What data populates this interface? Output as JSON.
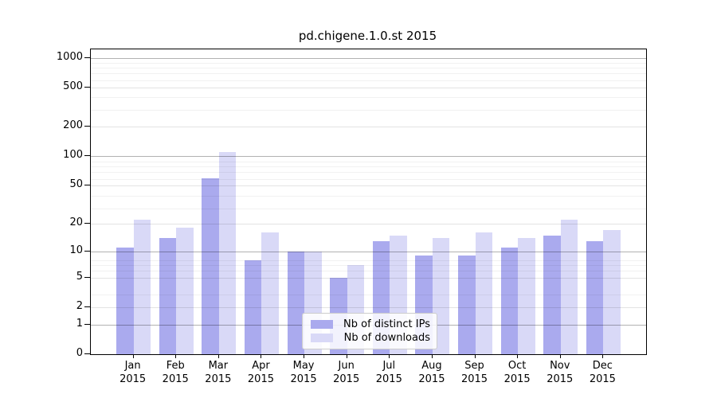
{
  "title": "pd.chigene.1.0.st 2015",
  "legend": {
    "items": [
      {
        "label": "Nb of distinct IPs",
        "color": "#aaaaee"
      },
      {
        "label": "Nb of downloads",
        "color": "#d9d9f7"
      }
    ]
  },
  "chart_data": {
    "type": "bar",
    "title": "pd.chigene.1.0.st 2015",
    "categories": [
      "Jan 2015",
      "Feb 2015",
      "Mar 2015",
      "Apr 2015",
      "May 2015",
      "Jun 2015",
      "Jul 2015",
      "Aug 2015",
      "Sep 2015",
      "Oct 2015",
      "Nov 2015",
      "Dec 2015"
    ],
    "series": [
      {
        "name": "Nb of distinct IPs",
        "color": "#aaaaee",
        "values": [
          11,
          14,
          60,
          8,
          10,
          5,
          13,
          9,
          9,
          11,
          15,
          13
        ]
      },
      {
        "name": "Nb of downloads",
        "color": "#d9d9f7",
        "values": [
          22,
          18,
          110,
          16,
          10,
          7,
          15,
          14,
          16,
          14,
          22,
          17
        ]
      }
    ],
    "xlabel": "",
    "ylabel": "",
    "yticks": [
      0,
      1,
      2,
      5,
      10,
      20,
      50,
      100,
      200,
      500,
      1000
    ],
    "y_scale": "log10(value+1)",
    "ylim": [
      0,
      1190
    ],
    "grid": true,
    "legend_position": "lower-center"
  }
}
